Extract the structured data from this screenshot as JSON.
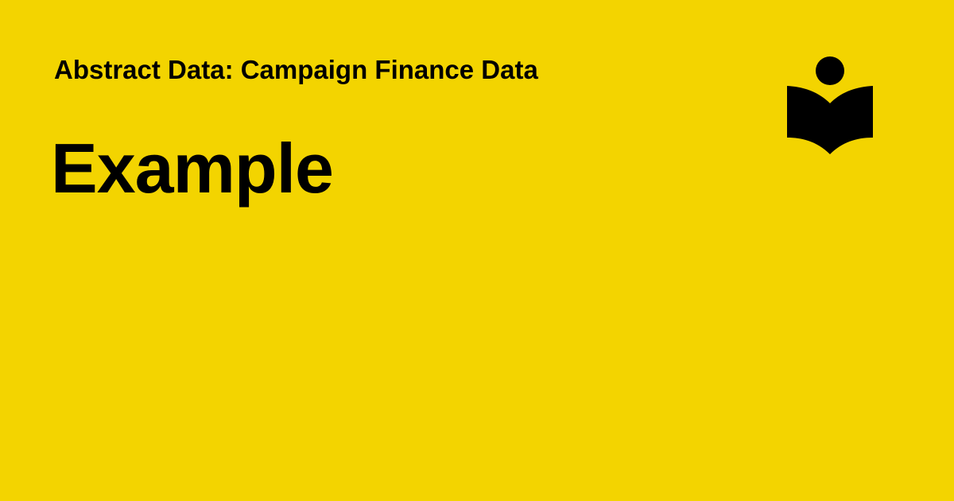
{
  "page": {
    "subtitle": "Abstract Data: Campaign Finance Data",
    "title": "Example"
  },
  "logo": {
    "icon": "reading-person-book-icon"
  },
  "colors": {
    "background": "#f3d400",
    "text": "#000000"
  }
}
